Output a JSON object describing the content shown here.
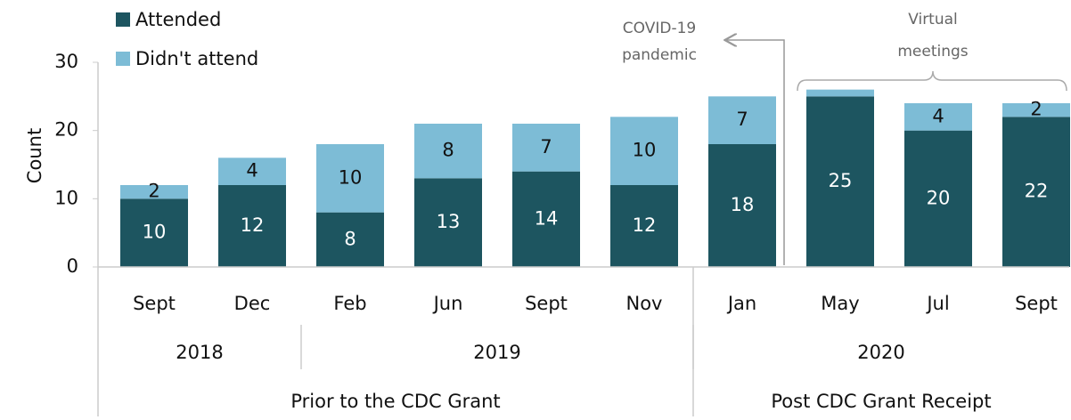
{
  "chart_data": {
    "type": "stacked_bar",
    "categories": [
      "Sept",
      "Dec",
      "Feb",
      "Jun",
      "Sept",
      "Nov",
      "Jan",
      "May",
      "Jul",
      "Sept"
    ],
    "series": [
      {
        "name": "Attended",
        "color": "#1d5560",
        "values": [
          10,
          12,
          8,
          13,
          14,
          12,
          18,
          25,
          20,
          22
        ]
      },
      {
        "name": "Didn't attend",
        "color": "#7dbcd6",
        "values": [
          2,
          4,
          10,
          8,
          7,
          10,
          7,
          1,
          4,
          2
        ],
        "value_labels": [
          "2",
          "4",
          "10",
          "8",
          "7",
          "10",
          "7",
          null,
          "4",
          "2"
        ]
      }
    ],
    "ylabel": "Count",
    "ylim": [
      0,
      30
    ],
    "yticks": [
      0,
      10,
      20,
      30
    ],
    "year_groups": [
      {
        "label": "2018",
        "count": 2
      },
      {
        "label": "2019",
        "count": 4
      },
      {
        "label": "2020",
        "count": 4
      }
    ],
    "period_groups": [
      {
        "label": "Prior to the CDC Grant",
        "count": 6
      },
      {
        "label": "Post CDC Grant Receipt",
        "count": 4
      }
    ],
    "annotations": [
      {
        "lines": [
          "COVID-19",
          "pandemic"
        ]
      },
      {
        "lines": [
          "Virtual",
          "meetings"
        ]
      }
    ]
  }
}
